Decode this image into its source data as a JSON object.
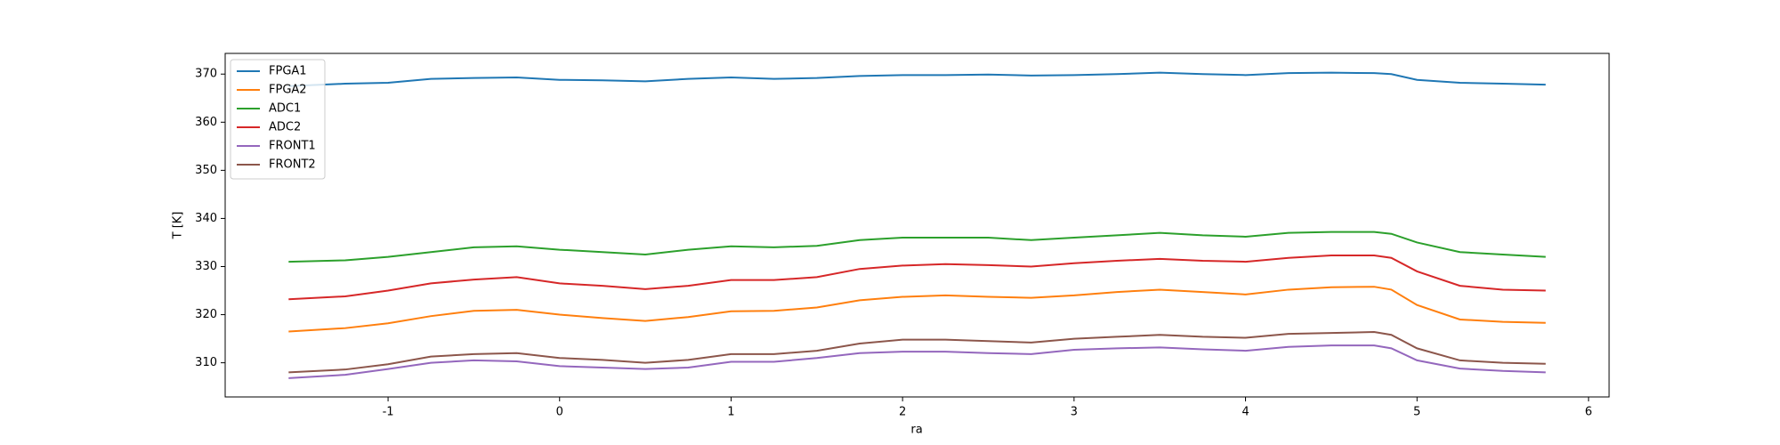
{
  "chart_data": {
    "type": "line",
    "x_label": "ra",
    "y_label": "T [K]",
    "x": [
      -1.58,
      -1.25,
      -1.0,
      -0.75,
      -0.5,
      -0.25,
      0,
      0.25,
      0.5,
      0.75,
      1.0,
      1.25,
      1.5,
      1.75,
      2.0,
      2.25,
      2.5,
      2.75,
      3.0,
      3.25,
      3.5,
      3.75,
      4.0,
      4.25,
      4.5,
      4.75,
      4.85,
      5.0,
      5.25,
      5.5,
      5.75
    ],
    "series": [
      {
        "name": "FPGA1",
        "color": "#1f77b4",
        "values": [
          367.5,
          368,
          368.2,
          369,
          369.2,
          369.3,
          368.8,
          368.7,
          368.5,
          369,
          369.3,
          369,
          369.2,
          369.6,
          369.8,
          369.8,
          369.9,
          369.7,
          369.8,
          370,
          370.3,
          370,
          369.8,
          370.2,
          370.3,
          370.2,
          370,
          368.8,
          368.2,
          368,
          367.8
        ]
      },
      {
        "name": "FPGA2",
        "color": "#ff7f0e",
        "values": [
          316.5,
          317.2,
          318.2,
          319.7,
          320.8,
          321,
          320,
          319.3,
          318.7,
          319.5,
          320.7,
          320.8,
          321.5,
          323,
          323.7,
          324,
          323.7,
          323.5,
          324,
          324.7,
          325.2,
          324.7,
          324.2,
          325.2,
          325.7,
          325.8,
          325.2,
          322,
          319,
          318.5,
          318.3
        ]
      },
      {
        "name": "ADC1",
        "color": "#2ca02c",
        "values": [
          331,
          331.3,
          332,
          333,
          334,
          334.2,
          333.5,
          333,
          332.5,
          333.5,
          334.2,
          334,
          334.3,
          335.5,
          336,
          336,
          336,
          335.5,
          336,
          336.5,
          337,
          336.5,
          336.2,
          337,
          337.2,
          337.2,
          336.8,
          335,
          333,
          332.5,
          332
        ]
      },
      {
        "name": "ADC2",
        "color": "#d62728",
        "values": [
          323.2,
          323.8,
          325,
          326.5,
          327.3,
          327.8,
          326.5,
          326,
          325.3,
          326,
          327.2,
          327.2,
          327.8,
          329.5,
          330.2,
          330.5,
          330.3,
          330,
          330.7,
          331.2,
          331.6,
          331.2,
          331,
          331.8,
          332.3,
          332.3,
          331.8,
          329,
          326,
          325.2,
          325
        ]
      },
      {
        "name": "FRONT1",
        "color": "#9467bd",
        "values": [
          306.8,
          307.5,
          308.7,
          310,
          310.5,
          310.3,
          309.3,
          309,
          308.7,
          309,
          310.2,
          310.2,
          311,
          312,
          312.3,
          312.3,
          312,
          311.8,
          312.7,
          313,
          313.2,
          312.8,
          312.5,
          313.3,
          313.6,
          313.6,
          313,
          310.5,
          308.8,
          308.3,
          308
        ]
      },
      {
        "name": "FRONT2",
        "color": "#8c564b",
        "values": [
          308,
          308.6,
          309.7,
          311.3,
          311.8,
          312,
          311,
          310.6,
          310,
          310.6,
          311.8,
          311.8,
          312.5,
          314,
          314.8,
          314.8,
          314.5,
          314.2,
          315,
          315.4,
          315.8,
          315.4,
          315.2,
          316,
          316.2,
          316.4,
          315.8,
          313,
          310.5,
          310,
          309.8
        ]
      }
    ],
    "xlim": [
      -1.95,
      6.12
    ],
    "ylim": [
      302.9,
      374.3
    ],
    "xticks": [
      -1,
      0,
      1,
      2,
      3,
      4,
      5,
      6
    ],
    "yticks": [
      310,
      320,
      330,
      340,
      350,
      360,
      370
    ],
    "legend": "upper-left",
    "grid": false
  }
}
